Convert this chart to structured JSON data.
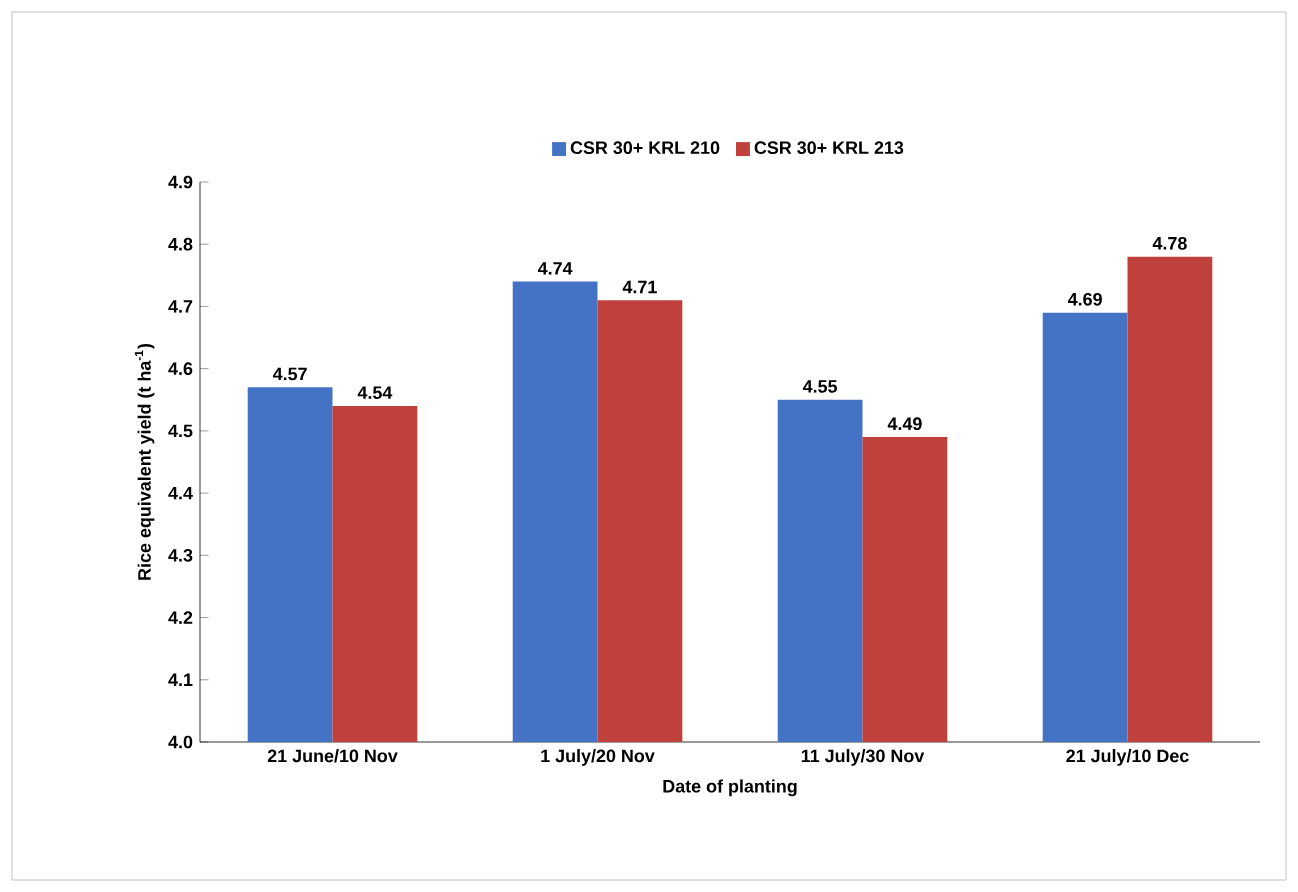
{
  "chart_data": {
    "type": "bar",
    "xlabel": "Date of planting",
    "ylabel": "Rice equivalent yield (t ha$^{-1}$)",
    "categories": [
      "21 June/10 Nov",
      "1 July/20 Nov",
      "11 July/30 Nov",
      "21 July/10 Dec"
    ],
    "series": [
      {
        "name": "CSR 30+ KRL 210",
        "color": "#4473c5",
        "values": [
          4.57,
          4.74,
          4.55,
          4.69
        ]
      },
      {
        "name": "CSR 30+ KRL 213",
        "color": "#c0403c",
        "values": [
          4.54,
          4.71,
          4.49,
          4.78
        ]
      }
    ],
    "ylim": [
      4.0,
      4.9
    ],
    "yticks": [
      {
        "value": 4.0,
        "label": "4.0"
      },
      4.1,
      4.2,
      4.3,
      4.4,
      4.5,
      4.6,
      4.7,
      4.8,
      4.9
    ],
    "legend": "top",
    "data_labels": true
  }
}
